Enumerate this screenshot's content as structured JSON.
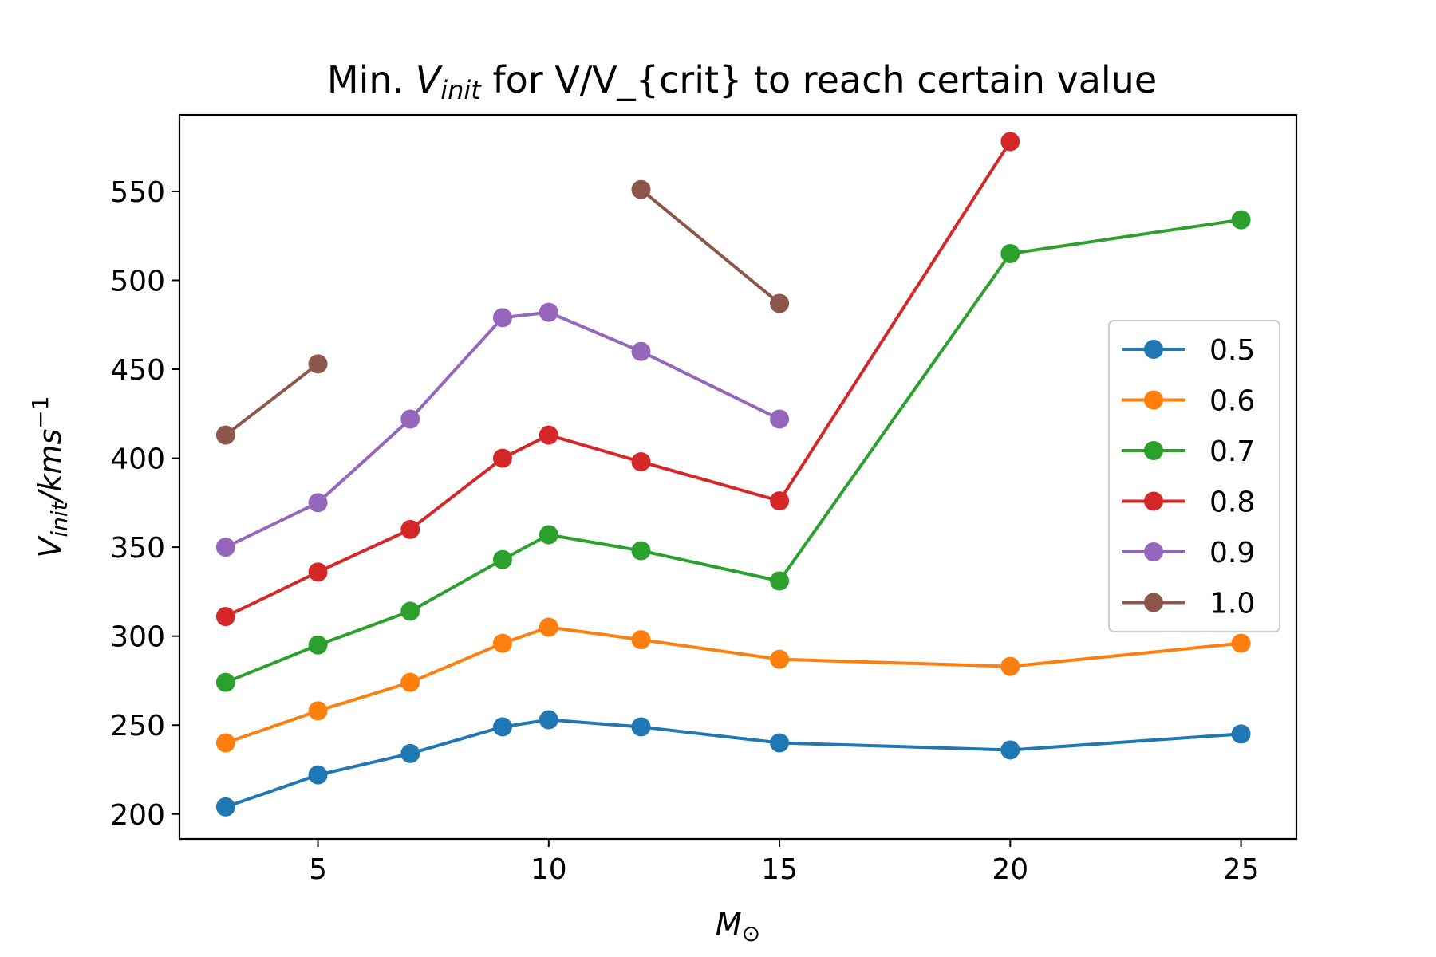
{
  "chart_data": {
    "type": "line",
    "title_prefix": "Min. ",
    "title_symbol": "V",
    "title_symbol_sub": "init",
    "title_suffix": " for V/V_{crit} to reach certain value",
    "xlabel_symbol": "M",
    "xlabel_sub": "⊙",
    "ylabel_symbol": "V",
    "ylabel_sub": "init",
    "ylabel_rest": "/kms",
    "ylabel_sup": "−1",
    "xlim": [
      2,
      26.2
    ],
    "ylim": [
      186,
      593
    ],
    "xticks": [
      5,
      10,
      15,
      20,
      25
    ],
    "yticks": [
      200,
      250,
      300,
      350,
      400,
      450,
      500,
      550
    ],
    "legend_position": "center-right",
    "series": [
      {
        "name": "0.5",
        "color": "#1f77b4",
        "x": [
          3,
          5,
          7,
          9,
          10,
          12,
          15,
          20,
          25
        ],
        "y": [
          204,
          222,
          234,
          249,
          253,
          249,
          240,
          236,
          245
        ]
      },
      {
        "name": "0.6",
        "color": "#ff7f0e",
        "x": [
          3,
          5,
          7,
          9,
          10,
          12,
          15,
          20,
          25
        ],
        "y": [
          240,
          258,
          274,
          296,
          305,
          298,
          287,
          283,
          296
        ]
      },
      {
        "name": "0.7",
        "color": "#2ca02c",
        "x": [
          3,
          5,
          7,
          9,
          10,
          12,
          15,
          20,
          25
        ],
        "y": [
          274,
          295,
          314,
          343,
          357,
          348,
          331,
          515,
          534
        ]
      },
      {
        "name": "0.8",
        "color": "#d62728",
        "x": [
          3,
          5,
          7,
          9,
          10,
          12,
          15,
          20
        ],
        "y": [
          311,
          336,
          360,
          400,
          413,
          398,
          376,
          578
        ]
      },
      {
        "name": "0.9",
        "color": "#9467bd",
        "x": [
          3,
          5,
          7,
          9,
          10,
          12,
          15
        ],
        "y": [
          350,
          375,
          422,
          479,
          482,
          460,
          422
        ]
      },
      {
        "name": "1.0",
        "color": "#8c564b",
        "segments": [
          {
            "x": [
              3,
              5
            ],
            "y": [
              413,
              453
            ]
          },
          {
            "x": [
              12,
              15
            ],
            "y": [
              551,
              487
            ]
          }
        ]
      }
    ]
  }
}
